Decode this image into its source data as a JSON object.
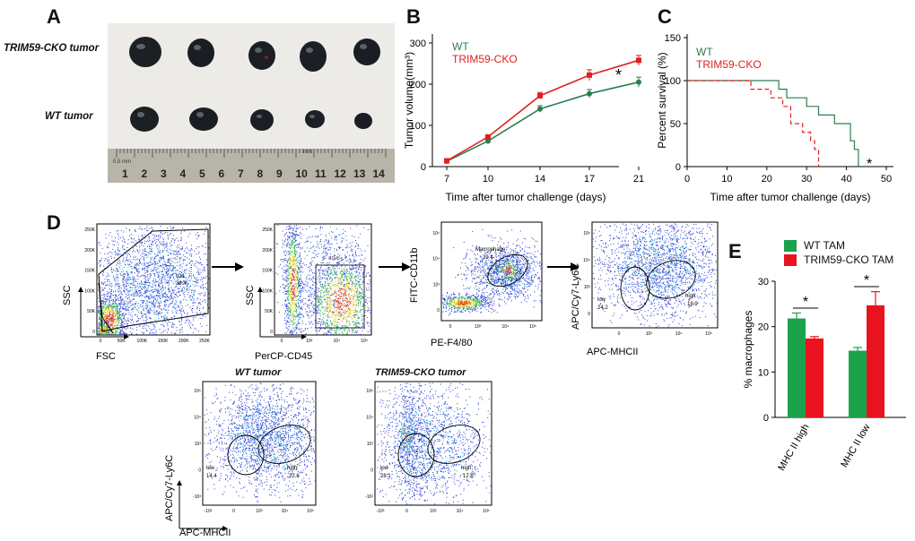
{
  "panels": {
    "A": "A",
    "B": "B",
    "C": "C",
    "D": "D",
    "E": "E"
  },
  "panel_a": {
    "row_labels": [
      "TRIM59-CKO tumor",
      "WT tumor"
    ],
    "ruler_numbers": [
      "1",
      "2",
      "3",
      "4",
      "5",
      "6",
      "7",
      "8",
      "9",
      "10",
      "11",
      "12",
      "13",
      "14"
    ],
    "ruler_unit_small": "0.5 mm",
    "ruler_unit_mm": "mm"
  },
  "chart_data": [
    {
      "id": "B",
      "type": "line",
      "xlabel": "Time after tumor challenge (days)",
      "ylabel": "Tumor volume(mm³)",
      "x": [
        7,
        10,
        14,
        17,
        21
      ],
      "xticks": [
        "7",
        "10",
        "14",
        "17",
        "21"
      ],
      "ylim": [
        0,
        300
      ],
      "yticks": [
        "0",
        "100",
        "200",
        "300"
      ],
      "series": [
        {
          "name": "WT",
          "color": "#2e7d4f",
          "values": [
            13,
            62,
            140,
            177,
            205
          ],
          "err": [
            2,
            4,
            8,
            10,
            12
          ]
        },
        {
          "name": "TRIM59-CKO",
          "color": "#e02020",
          "values": [
            14,
            72,
            172,
            222,
            258
          ],
          "err": [
            2,
            4,
            8,
            13,
            12
          ]
        }
      ],
      "annotation": "*"
    },
    {
      "id": "C",
      "type": "line",
      "xlabel": "Time after tumor challenge (days)",
      "ylabel": "Percent survival (%)",
      "xlim": [
        0,
        50
      ],
      "xticks": [
        "0",
        "10",
        "20",
        "30",
        "40",
        "50"
      ],
      "ylim": [
        0,
        150
      ],
      "yticks": [
        "0",
        "50",
        "100",
        "150"
      ],
      "series": [
        {
          "name": "WT",
          "color": "#2e7d4f",
          "style": "solid",
          "steps": [
            [
              0,
              100
            ],
            [
              23,
              100
            ],
            [
              23,
              90
            ],
            [
              25,
              90
            ],
            [
              25,
              80
            ],
            [
              30,
              80
            ],
            [
              30,
              70
            ],
            [
              33,
              70
            ],
            [
              33,
              60
            ],
            [
              37,
              60
            ],
            [
              37,
              50
            ],
            [
              41,
              50
            ],
            [
              41,
              30
            ],
            [
              42,
              30
            ],
            [
              42,
              20
            ],
            [
              43,
              20
            ],
            [
              43,
              0
            ]
          ]
        },
        {
          "name": "TRIM59-CKO",
          "color": "#e02020",
          "style": "dashed",
          "steps": [
            [
              0,
              100
            ],
            [
              16,
              100
            ],
            [
              16,
              90
            ],
            [
              21,
              90
            ],
            [
              21,
              80
            ],
            [
              24,
              80
            ],
            [
              24,
              70
            ],
            [
              26,
              70
            ],
            [
              26,
              50
            ],
            [
              29,
              50
            ],
            [
              29,
              40
            ],
            [
              31,
              40
            ],
            [
              31,
              30
            ],
            [
              32,
              30
            ],
            [
              32,
              20
            ],
            [
              33,
              20
            ],
            [
              33,
              0
            ]
          ]
        }
      ],
      "annotation": "*"
    },
    {
      "id": "E",
      "type": "bar",
      "categories": [
        "MHC II high",
        "MHC II low"
      ],
      "ylabel": "% macrophages",
      "ylim": [
        0,
        30
      ],
      "yticks": [
        "0",
        "10",
        "20",
        "30"
      ],
      "series": [
        {
          "name": "WT TAM",
          "color": "#1aa34a",
          "values": [
            21.8,
            14.7
          ],
          "err": [
            1.2,
            0.7
          ]
        },
        {
          "name": "TRIM59-CKO TAM",
          "color": "#e8131f",
          "values": [
            17.4,
            24.7
          ],
          "err": [
            0.4,
            3.0
          ]
        }
      ],
      "annotations": [
        "*",
        "*"
      ]
    }
  ],
  "panel_d": {
    "plot1": {
      "xlabel": "FSC",
      "ylabel": "SSC",
      "gate_name": "G1",
      "gate_value": "36.4",
      "yticks": [
        "250K",
        "200K",
        "150K",
        "100K",
        "50K",
        "0"
      ],
      "xticks": [
        "0",
        "50K",
        "100K",
        "150K",
        "200K",
        "250K"
      ]
    },
    "plot2": {
      "xlabel": "PerCP-CD45",
      "ylabel": "SSC",
      "gate_name": "CD45+",
      "yticks": [
        "250K",
        "200K",
        "150K",
        "100K",
        "50K",
        "0"
      ],
      "xticks": [
        "0",
        "10³",
        "10⁴",
        "10⁵"
      ]
    },
    "plot3": {
      "xlabel": "PE-F4/80",
      "ylabel": "FITC-CD11b",
      "gate_name": "Macrophage",
      "gate_value": "39.4",
      "yticks": [
        "10⁵",
        "10⁴",
        "10³",
        "0"
      ],
      "xticks": [
        "0",
        "10³",
        "10⁴",
        "10⁵"
      ]
    },
    "plot4": {
      "xlabel": "APC-MHCII",
      "ylabel": "APC/Cy7-Ly6C",
      "low_label": "low",
      "low_value": "24.2",
      "high_label": "high",
      "high_value": "18.9",
      "yticks": [
        "10⁵",
        "10⁴",
        "10³",
        "0"
      ],
      "xticks": [
        "0",
        "10³",
        "10⁴",
        "10⁵"
      ]
    },
    "plot5": {
      "title": "WT tumor",
      "xlabel": "APC-MHCII",
      "ylabel": "APC/Cy7-Ly6C",
      "low_label": "low",
      "low_value": "14.4",
      "high_label": "high",
      "high_value": "22.6",
      "yticks": [
        "10⁵",
        "10⁴",
        "10³",
        "0",
        "-10³"
      ],
      "xticks": [
        "-10³",
        "0",
        "10³",
        "10⁴",
        "10⁵"
      ]
    },
    "plot6": {
      "title": "TRIM59-CKO tumor",
      "xlabel": "",
      "ylabel": "",
      "low_label": "low",
      "low_value": "28.1",
      "high_label": "high",
      "high_value": "17.8",
      "yticks": [
        "10⁵",
        "10⁴",
        "10³",
        "0",
        "-10³"
      ],
      "xticks": [
        "-10³",
        "0",
        "10³",
        "10⁴",
        "10⁵"
      ]
    }
  }
}
